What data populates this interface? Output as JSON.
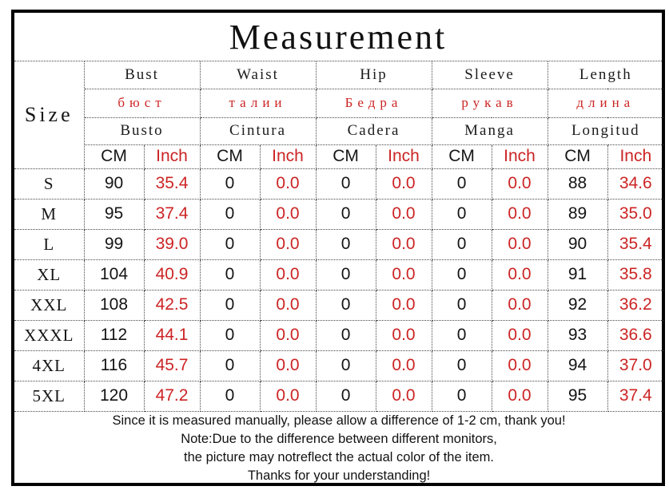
{
  "page": {
    "title": "Measurement"
  },
  "colors": {
    "accent_red": "#cc2424",
    "outer_border": "#000000",
    "text": "#161616"
  },
  "table": {
    "size_header": "Size",
    "unit_labels": {
      "cm": "CM",
      "inch": "Inch"
    },
    "groups": [
      {
        "en": "Bust",
        "ru": "бюст",
        "es": "Busto"
      },
      {
        "en": "Waist",
        "ru": "талии",
        "es": "Cintura"
      },
      {
        "en": "Hip",
        "ru": "Бедра",
        "es": "Cadera"
      },
      {
        "en": "Sleeve",
        "ru": "рукав",
        "es": "Manga"
      },
      {
        "en": "Length",
        "ru": "длина",
        "es": "Longitud"
      }
    ],
    "rows": [
      {
        "size": "S",
        "values": [
          [
            "90",
            "35.4"
          ],
          [
            "0",
            "0.0"
          ],
          [
            "0",
            "0.0"
          ],
          [
            "0",
            "0.0"
          ],
          [
            "88",
            "34.6"
          ]
        ]
      },
      {
        "size": "M",
        "values": [
          [
            "95",
            "37.4"
          ],
          [
            "0",
            "0.0"
          ],
          [
            "0",
            "0.0"
          ],
          [
            "0",
            "0.0"
          ],
          [
            "89",
            "35.0"
          ]
        ]
      },
      {
        "size": "L",
        "values": [
          [
            "99",
            "39.0"
          ],
          [
            "0",
            "0.0"
          ],
          [
            "0",
            "0.0"
          ],
          [
            "0",
            "0.0"
          ],
          [
            "90",
            "35.4"
          ]
        ]
      },
      {
        "size": "XL",
        "values": [
          [
            "104",
            "40.9"
          ],
          [
            "0",
            "0.0"
          ],
          [
            "0",
            "0.0"
          ],
          [
            "0",
            "0.0"
          ],
          [
            "91",
            "35.8"
          ]
        ]
      },
      {
        "size": "XXL",
        "values": [
          [
            "108",
            "42.5"
          ],
          [
            "0",
            "0.0"
          ],
          [
            "0",
            "0.0"
          ],
          [
            "0",
            "0.0"
          ],
          [
            "92",
            "36.2"
          ]
        ]
      },
      {
        "size": "XXXL",
        "values": [
          [
            "112",
            "44.1"
          ],
          [
            "0",
            "0.0"
          ],
          [
            "0",
            "0.0"
          ],
          [
            "0",
            "0.0"
          ],
          [
            "93",
            "36.6"
          ]
        ]
      },
      {
        "size": "4XL",
        "values": [
          [
            "116",
            "45.7"
          ],
          [
            "0",
            "0.0"
          ],
          [
            "0",
            "0.0"
          ],
          [
            "0",
            "0.0"
          ],
          [
            "94",
            "37.0"
          ]
        ]
      },
      {
        "size": "5XL",
        "values": [
          [
            "120",
            "47.2"
          ],
          [
            "0",
            "0.0"
          ],
          [
            "0",
            "0.0"
          ],
          [
            "0",
            "0.0"
          ],
          [
            "95",
            "37.4"
          ]
        ]
      }
    ]
  },
  "notes": {
    "lines": [
      "Since it is measured manually, please allow a difference of 1-2 cm, thank you!",
      "Note:Due to the difference between different monitors,",
      "the picture may notreflect the actual color of the item.",
      "Thanks for your understanding!"
    ]
  },
  "chart_data": {
    "type": "table",
    "title": "Measurement",
    "columns": [
      "Size",
      "Bust CM",
      "Bust Inch",
      "Waist CM",
      "Waist Inch",
      "Hip CM",
      "Hip Inch",
      "Sleeve CM",
      "Sleeve Inch",
      "Length CM",
      "Length Inch"
    ],
    "rows": [
      [
        "S",
        90,
        35.4,
        0,
        0.0,
        0,
        0.0,
        0,
        0.0,
        88,
        34.6
      ],
      [
        "M",
        95,
        37.4,
        0,
        0.0,
        0,
        0.0,
        0,
        0.0,
        89,
        35.0
      ],
      [
        "L",
        99,
        39.0,
        0,
        0.0,
        0,
        0.0,
        0,
        0.0,
        90,
        35.4
      ],
      [
        "XL",
        104,
        40.9,
        0,
        0.0,
        0,
        0.0,
        0,
        0.0,
        91,
        35.8
      ],
      [
        "XXL",
        108,
        42.5,
        0,
        0.0,
        0,
        0.0,
        0,
        0.0,
        92,
        36.2
      ],
      [
        "XXXL",
        112,
        44.1,
        0,
        0.0,
        0,
        0.0,
        0,
        0.0,
        93,
        36.6
      ],
      [
        "4XL",
        116,
        45.7,
        0,
        0.0,
        0,
        0.0,
        0,
        0.0,
        94,
        37.0
      ],
      [
        "5XL",
        120,
        47.2,
        0,
        0.0,
        0,
        0.0,
        0,
        0.0,
        95,
        37.4
      ]
    ],
    "header_translations": {
      "russian": [
        "бюст",
        "талии",
        "Бедра",
        "рукав",
        "длина"
      ],
      "spanish": [
        "Busto",
        "Cintura",
        "Cadera",
        "Manga",
        "Longitud"
      ]
    }
  }
}
